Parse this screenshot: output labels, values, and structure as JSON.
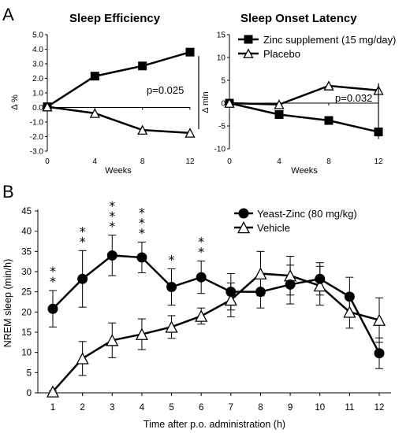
{
  "panels": {
    "a": "A",
    "b": "B"
  },
  "chart_data": [
    {
      "type": "line",
      "title": "Sleep Efficiency",
      "xlabel": "Weeks",
      "ylabel": "Δ %",
      "x": [
        0,
        4,
        8,
        12
      ],
      "xlim": [
        0,
        12
      ],
      "ylim": [
        -3.0,
        5.0
      ],
      "yticks": [
        "5.0",
        "4.0",
        "3.0",
        "2.0",
        "1.0",
        "0.0",
        "-1.0",
        "-2.0",
        "-3.0"
      ],
      "series": [
        {
          "name": "Zinc supplement (15 mg/day)",
          "marker": "square",
          "values": [
            0.05,
            2.15,
            2.85,
            3.8
          ]
        },
        {
          "name": "Placebo",
          "marker": "triangle",
          "values": [
            0.05,
            -0.4,
            -1.55,
            -1.75
          ]
        }
      ],
      "annotation": "p=0.025"
    },
    {
      "type": "line",
      "title": "Sleep Onset Latency",
      "xlabel": "Weeks",
      "ylabel": "Δ min",
      "x": [
        0,
        4,
        8,
        12
      ],
      "xlim": [
        0,
        12
      ],
      "ylim": [
        -10,
        15
      ],
      "yticks": [
        "15",
        "10",
        "5",
        "0",
        "-5",
        "-10"
      ],
      "series": [
        {
          "name": "Zinc supplement (15 mg/day)",
          "marker": "square",
          "values": [
            0,
            -2.5,
            -3.8,
            -6.3
          ]
        },
        {
          "name": "Placebo",
          "marker": "triangle",
          "values": [
            0,
            -0.3,
            3.8,
            2.8
          ]
        }
      ],
      "annotation": "p=0.032",
      "legend": [
        "Zinc supplement (15 mg/day)",
        "Placebo"
      ],
      "legend_position": "top-right"
    },
    {
      "type": "line",
      "title": "",
      "xlabel": "Time after p.o. administration (h)",
      "ylabel": "NREM sleep (min/h)",
      "x": [
        1,
        2,
        3,
        4,
        5,
        6,
        7,
        8,
        9,
        10,
        11,
        12
      ],
      "ylim": [
        0,
        45
      ],
      "yticks": [
        "45",
        "40",
        "35",
        "30",
        "25",
        "20",
        "15",
        "10",
        "5",
        "0"
      ],
      "legend_position": "top-right",
      "series": [
        {
          "name": "Yeast-Zinc (80 mg/kg)",
          "marker": "circle",
          "values": [
            20.8,
            28.2,
            34.0,
            33.5,
            26.2,
            28.6,
            25.0,
            25.0,
            26.8,
            28.2,
            23.8,
            9.8
          ],
          "error": [
            4.5,
            7.0,
            5.0,
            3.8,
            4.5,
            4.0,
            4.5,
            4.0,
            4.8,
            4.0,
            4.8,
            3.8
          ]
        },
        {
          "name": "Vehicle",
          "marker": "triangle",
          "values": [
            0.3,
            8.5,
            13.0,
            14.5,
            16.3,
            19.0,
            23.0,
            29.5,
            29.0,
            26.5,
            20.0,
            18.0
          ],
          "error": [
            0.2,
            4.2,
            4.3,
            3.8,
            2.8,
            2.0,
            4.2,
            5.5,
            4.8,
            4.8,
            4.0,
            5.5
          ]
        }
      ],
      "significance": [
        "**",
        "**",
        "***",
        "***",
        "*",
        "**",
        "",
        "",
        "",
        "",
        "",
        ""
      ]
    }
  ]
}
